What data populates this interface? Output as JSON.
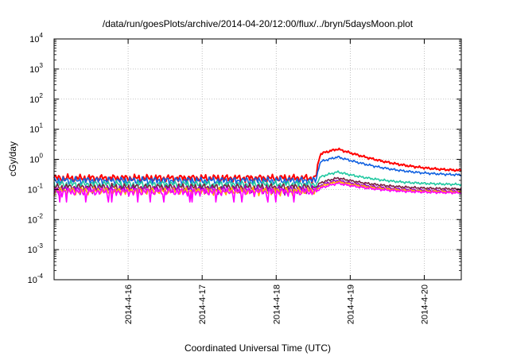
{
  "chart_data": {
    "type": "line",
    "title": "/data/run/goesPlots/archive/2014-04-20/12:00/flux/../bryn/5daysMoon.plot",
    "xlabel": "Coordinated Universal Time (UTC)",
    "ylabel": "cGy/day",
    "yscale": "log",
    "ylim": [
      0.0001,
      10000
    ],
    "xlim": [
      "2014-04-15 00:00",
      "2014-04-20 12:00"
    ],
    "grid": true,
    "legend": "none",
    "y_ticks": [
      {
        "base": "10",
        "exp": "-4"
      },
      {
        "base": "10",
        "exp": "-3"
      },
      {
        "base": "10",
        "exp": "-2"
      },
      {
        "base": "10",
        "exp": "-1"
      },
      {
        "base": "10",
        "exp": "0"
      },
      {
        "base": "10",
        "exp": "1"
      },
      {
        "base": "10",
        "exp": "2"
      },
      {
        "base": "10",
        "exp": "3"
      },
      {
        "base": "10",
        "exp": "4"
      }
    ],
    "x_ticks": [
      "2014-4-16",
      "2014-4-17",
      "2014-4-18",
      "2014-4-19",
      "2014-4-20"
    ],
    "event_time": "2014-04-18 13:00",
    "series": [
      {
        "color": "#ff0000",
        "baseline": 0.24,
        "peak": 2.2,
        "end": 0.38
      },
      {
        "color": "#1060e0",
        "baseline": 0.2,
        "peak": 1.2,
        "end": 0.28
      },
      {
        "color": "#20c8a0",
        "baseline": 0.15,
        "peak": 0.38,
        "end": 0.14
      },
      {
        "color": "#7a2040",
        "baseline": 0.12,
        "peak": 0.24,
        "end": 0.1
      },
      {
        "color": "#a000c8",
        "baseline": 0.1,
        "peak": 0.2,
        "end": 0.085
      },
      {
        "color": "#ffb000",
        "baseline": 0.09,
        "peak": 0.18,
        "end": 0.08
      },
      {
        "color": "#ff00ff",
        "baseline": 0.085,
        "peak": 0.16,
        "end": 0.075
      }
    ]
  }
}
